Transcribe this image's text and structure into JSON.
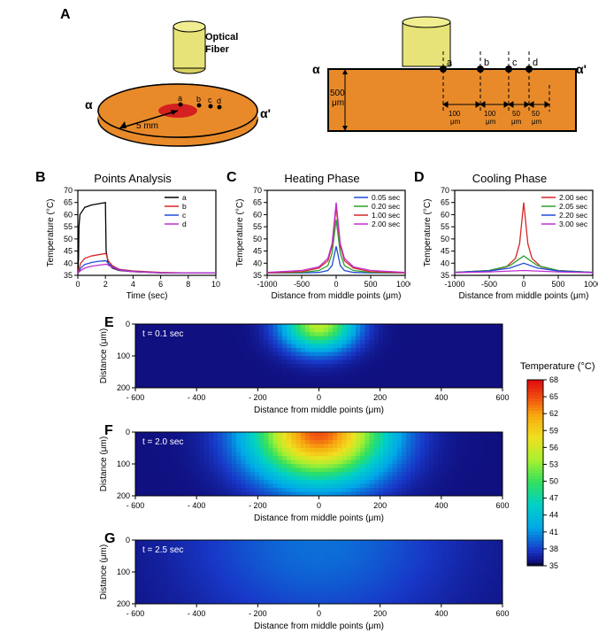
{
  "panelA": {
    "label": "A",
    "fiber_label": "Optical Fiber",
    "alpha_left": "α",
    "alpha_right": "α'",
    "radius_label": "5 mm",
    "thickness_label": "500 μm",
    "points": [
      "a",
      "b",
      "c",
      "d"
    ],
    "spacing_labels": [
      "100 μm",
      "100 μm",
      "50 μm",
      "50 μm"
    ],
    "cylinder_color": "#e8e378",
    "disc_color": "#e88a2a",
    "core_color": "#d42020",
    "slab_color": "#e88a2a"
  },
  "panelB": {
    "label": "B",
    "title": "Points Analysis",
    "xlabel": "Time (sec)",
    "ylabel": "Temperature (°C)",
    "xlim": [
      0,
      10
    ],
    "xticks": [
      0,
      2,
      4,
      6,
      8,
      10
    ],
    "ylim": [
      35,
      70
    ],
    "yticks": [
      35,
      40,
      45,
      50,
      55,
      60,
      65,
      70
    ],
    "series": [
      {
        "name": "a",
        "color": "#000000",
        "x": [
          0,
          0.05,
          0.08,
          0.15,
          0.5,
          1.0,
          1.5,
          2.0,
          2.01,
          2.05,
          2.2,
          2.5,
          3,
          4,
          6,
          8,
          10
        ],
        "y": [
          36,
          42,
          55,
          60,
          63,
          64,
          64.5,
          65,
          60,
          45,
          40,
          38,
          37,
          36.5,
          36,
          36,
          36
        ]
      },
      {
        "name": "b",
        "color": "#d62728",
        "x": [
          0,
          0.05,
          0.2,
          0.5,
          1.0,
          1.5,
          2.0,
          2.05,
          2.2,
          2.5,
          3,
          4,
          6,
          8,
          10
        ],
        "y": [
          36,
          37,
          40,
          42,
          43,
          43.5,
          44,
          43.8,
          41,
          39,
          37.5,
          36.8,
          36.2,
          36,
          36
        ]
      },
      {
        "name": "c",
        "color": "#1f4bd8",
        "x": [
          0,
          0.05,
          0.2,
          0.5,
          1.0,
          1.5,
          2.0,
          2.05,
          2.2,
          2.5,
          3,
          4,
          6,
          8,
          10
        ],
        "y": [
          36,
          36.3,
          38,
          39.5,
          40.3,
          40.8,
          41,
          41,
          40,
          38.5,
          37.3,
          36.6,
          36.1,
          36,
          36
        ]
      },
      {
        "name": "d",
        "color": "#c030d0",
        "x": [
          0,
          0.05,
          0.2,
          0.5,
          1.0,
          1.5,
          2.0,
          2.05,
          2.2,
          2.5,
          3,
          4,
          6,
          8,
          10
        ],
        "y": [
          36,
          36.1,
          37,
          38,
          38.8,
          39.2,
          39.5,
          39.6,
          39.2,
          38.3,
          37.2,
          36.5,
          36.1,
          36,
          36
        ]
      }
    ]
  },
  "panelC": {
    "label": "C",
    "title": "Heating Phase",
    "xlabel": "Distance from middle points (μm)",
    "ylabel": "Temperature (°C)",
    "xlim": [
      -1000,
      1000
    ],
    "xticks": [
      -1000,
      -500,
      0,
      500,
      1000
    ],
    "ylim": [
      35,
      70
    ],
    "yticks": [
      35,
      40,
      45,
      50,
      55,
      60,
      65,
      70
    ],
    "series": [
      {
        "name": "0.05 sec",
        "color": "#1f4bd8",
        "x": [
          -1000,
          -500,
          -250,
          -120,
          -60,
          0,
          60,
          120,
          250,
          500,
          1000
        ],
        "y": [
          36,
          36,
          36.2,
          37,
          39,
          47,
          39,
          37,
          36.2,
          36,
          36
        ]
      },
      {
        "name": "0.20 sec",
        "color": "#2ca02c",
        "x": [
          -1000,
          -500,
          -250,
          -120,
          -60,
          0,
          60,
          120,
          250,
          500,
          1000
        ],
        "y": [
          36,
          36.2,
          37,
          39,
          44,
          58,
          44,
          39,
          37,
          36.2,
          36
        ]
      },
      {
        "name": "1.00 sec",
        "color": "#d62728",
        "x": [
          -1000,
          -500,
          -250,
          -120,
          -60,
          0,
          60,
          120,
          250,
          500,
          1000
        ],
        "y": [
          36,
          36.5,
          38,
          41,
          47,
          63,
          47,
          41,
          38,
          36.5,
          36
        ]
      },
      {
        "name": "2.00 sec",
        "color": "#c030d0",
        "x": [
          -1000,
          -500,
          -250,
          -120,
          -60,
          0,
          60,
          120,
          250,
          500,
          1000
        ],
        "y": [
          36.2,
          37,
          38.5,
          42,
          48,
          65,
          48,
          42,
          38.5,
          37,
          36.2
        ]
      }
    ]
  },
  "panelD": {
    "label": "D",
    "title": "Cooling Phase",
    "xlabel": "Distance from middle points (μm)",
    "ylabel": "Temperature (°C)",
    "xlim": [
      -1000,
      1000
    ],
    "xticks": [
      -1000,
      -500,
      0,
      500,
      1000
    ],
    "ylim": [
      35,
      70
    ],
    "yticks": [
      35,
      40,
      45,
      50,
      55,
      60,
      65,
      70
    ],
    "series": [
      {
        "name": "2.00 sec",
        "color": "#d62728",
        "x": [
          -1000,
          -500,
          -250,
          -120,
          -60,
          0,
          60,
          120,
          250,
          500,
          1000
        ],
        "y": [
          36.2,
          37,
          38.5,
          42,
          48,
          65,
          48,
          42,
          38.5,
          37,
          36.2
        ]
      },
      {
        "name": "2.05 sec",
        "color": "#2ca02c",
        "x": [
          -1000,
          -500,
          -200,
          -100,
          0,
          100,
          200,
          500,
          1000
        ],
        "y": [
          36.2,
          37,
          39,
          41,
          43,
          41,
          39,
          37,
          36.2
        ]
      },
      {
        "name": "2.20 sec",
        "color": "#1f4bd8",
        "x": [
          -1000,
          -500,
          -200,
          0,
          200,
          500,
          1000
        ],
        "y": [
          36.2,
          36.8,
          38,
          40,
          38,
          36.8,
          36.2
        ]
      },
      {
        "name": "3.00 sec",
        "color": "#c030d0",
        "x": [
          -1000,
          -500,
          0,
          500,
          1000
        ],
        "y": [
          36.1,
          36.4,
          37,
          36.4,
          36.1
        ]
      }
    ]
  },
  "heatmaps": {
    "xlabel": "Distance from middle points (μm)",
    "ylabel": "Distance (μm)",
    "xlim": [
      -600,
      600
    ],
    "xticks": [
      -600,
      -400,
      -200,
      0,
      200,
      400,
      600
    ],
    "ylim": [
      0,
      200
    ],
    "yticks": [
      0,
      100,
      200
    ],
    "panels": [
      {
        "label": "E",
        "t": "t = 0.1 sec",
        "peak": 55,
        "spread": 80
      },
      {
        "label": "F",
        "t": "t = 2.0 sec",
        "peak": 65,
        "spread": 150
      },
      {
        "label": "G",
        "t": "t = 2.5 sec",
        "peak": 40,
        "spread": 300
      }
    ],
    "background_color": "#1838c8",
    "colorbar": {
      "label": "Temperature (°C)",
      "ticks": [
        35,
        38,
        41,
        44,
        47,
        50,
        53,
        56,
        59,
        62,
        65,
        68
      ],
      "colors": [
        "#000000",
        "#1838c8",
        "#00a8e8",
        "#00d0c8",
        "#30e060",
        "#a8f030",
        "#f0e020",
        "#f8a810",
        "#f05010",
        "#e01010"
      ]
    }
  },
  "chart_style": {
    "axis_color": "#000000",
    "grid": false,
    "line_width": 1.3,
    "title_fontsize": 13,
    "label_fontsize": 10,
    "tick_fontsize": 9,
    "legend_fontsize": 9
  }
}
